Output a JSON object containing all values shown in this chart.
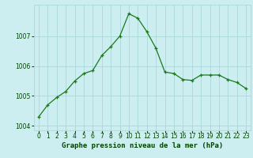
{
  "x": [
    0,
    1,
    2,
    3,
    4,
    5,
    6,
    7,
    8,
    9,
    10,
    11,
    12,
    13,
    14,
    15,
    16,
    17,
    18,
    19,
    20,
    21,
    22,
    23
  ],
  "y": [
    1004.3,
    1004.7,
    1004.95,
    1005.15,
    1005.5,
    1005.75,
    1005.85,
    1006.35,
    1006.65,
    1007.0,
    1007.75,
    1007.6,
    1007.15,
    1006.6,
    1005.8,
    1005.75,
    1005.55,
    1005.52,
    1005.7,
    1005.7,
    1005.7,
    1005.55,
    1005.45,
    1005.25
  ],
  "line_color": "#1a7a1a",
  "marker": "+",
  "markersize": 3.5,
  "linewidth": 0.9,
  "bg_color": "#cceef0",
  "grid_color": "#aad8da",
  "xlabel": "Graphe pression niveau de la mer (hPa)",
  "xlabel_fontsize": 6.5,
  "xlabel_color": "#004400",
  "tick_label_color": "#004400",
  "tick_fontsize": 5.5,
  "yticks": [
    1004,
    1005,
    1006,
    1007
  ],
  "ylim": [
    1003.85,
    1008.05
  ],
  "xlim": [
    -0.5,
    23.5
  ],
  "xtick_labels": [
    "0",
    "1",
    "2",
    "3",
    "4",
    "5",
    "6",
    "7",
    "8",
    "9",
    "10",
    "11",
    "12",
    "13",
    "14",
    "15",
    "16",
    "17",
    "18",
    "19",
    "20",
    "21",
    "22",
    "23"
  ]
}
